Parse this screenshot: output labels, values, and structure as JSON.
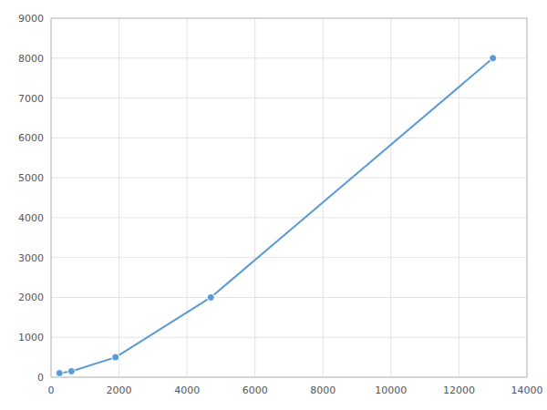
{
  "chart_data": {
    "type": "line",
    "x": [
      250,
      600,
      1900,
      4700,
      13000
    ],
    "values": [
      100,
      150,
      500,
      2000,
      8000
    ],
    "color": "#5b9bd5",
    "marker": "circle",
    "xlim": [
      0,
      14000
    ],
    "ylim": [
      0,
      9000
    ],
    "xticks": [
      0,
      2000,
      4000,
      6000,
      8000,
      10000,
      12000,
      14000
    ],
    "yticks": [
      0,
      1000,
      2000,
      3000,
      4000,
      5000,
      6000,
      7000,
      8000,
      9000
    ],
    "grid": true
  }
}
